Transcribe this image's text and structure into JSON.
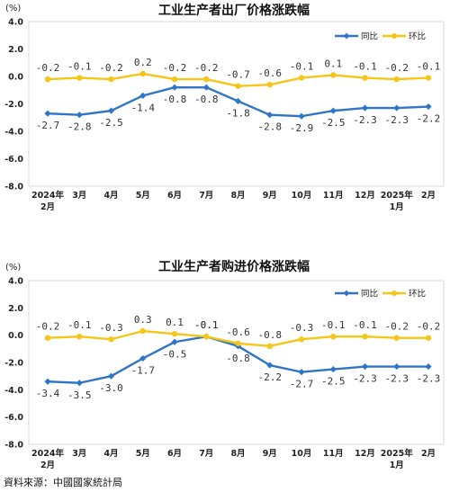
{
  "chart_data": [
    {
      "type": "line",
      "title": "工业生产者出厂价格涨跌幅",
      "yunit": "(%)",
      "ylim": [
        -8.0,
        4.0
      ],
      "yticks": [
        "4.0",
        "2.0",
        "0.0",
        "-2.0",
        "-4.0",
        "-6.0",
        "-8.0"
      ],
      "categories": [
        "2024年\n2月",
        "3月",
        "4月",
        "5月",
        "6月",
        "7月",
        "8月",
        "9月",
        "10月",
        "11月",
        "12月",
        "2025年\n1月",
        "2月"
      ],
      "legend_position": "top-right",
      "series": [
        {
          "name": "同比",
          "color": "#2F75C7",
          "marker": "diamond",
          "values": [
            -2.7,
            -2.8,
            -2.5,
            -1.4,
            -0.8,
            -0.8,
            -1.8,
            -2.8,
            -2.9,
            -2.5,
            -2.3,
            -2.3,
            -2.2
          ],
          "labels": [
            "-2.7",
            "-2.8",
            "-2.5",
            "-1.4",
            "-0.8",
            "-0.8",
            "-1.8",
            "-2.8",
            "-2.9",
            "-2.5",
            "-2.3",
            "-2.3",
            "-2.2"
          ]
        },
        {
          "name": "环比",
          "color": "#F5C518",
          "marker": "circle",
          "values": [
            -0.2,
            -0.1,
            -0.2,
            0.2,
            -0.2,
            -0.2,
            -0.7,
            -0.6,
            -0.1,
            0.1,
            -0.1,
            -0.2,
            -0.1
          ],
          "labels": [
            "-0.2",
            "-0.1",
            "-0.2",
            "0.2",
            "-0.2",
            "-0.2",
            "-0.7",
            "-0.6",
            "-0.1",
            "0.1",
            "-0.1",
            "-0.2",
            "-0.1"
          ]
        }
      ]
    },
    {
      "type": "line",
      "title": "工业生产者购进价格涨跌幅",
      "yunit": "(%)",
      "ylim": [
        -8.0,
        4.0
      ],
      "yticks": [
        "4.0",
        "2.0",
        "0.0",
        "-2.0",
        "-4.0",
        "-6.0",
        "-8.0"
      ],
      "categories": [
        "2024年\n2月",
        "3月",
        "4月",
        "5月",
        "6月",
        "7月",
        "8月",
        "9月",
        "10月",
        "11月",
        "12月",
        "2025年\n1月",
        "2月"
      ],
      "legend_position": "top-right",
      "series": [
        {
          "name": "同比",
          "color": "#2F75C7",
          "marker": "diamond",
          "values": [
            -3.4,
            -3.5,
            -3.0,
            -1.7,
            -0.5,
            -0.1,
            -0.8,
            -2.2,
            -2.7,
            -2.5,
            -2.3,
            -2.3,
            -2.3
          ],
          "labels": [
            "-3.4",
            "-3.5",
            "-3.0",
            "-1.7",
            "-0.5",
            "-0.1",
            "-0.8",
            "-2.2",
            "-2.7",
            "-2.5",
            "-2.3",
            "-2.3",
            "-2.3"
          ]
        },
        {
          "name": "环比",
          "color": "#F5C518",
          "marker": "circle",
          "values": [
            -0.2,
            -0.1,
            -0.3,
            0.3,
            0.1,
            -0.1,
            -0.6,
            -0.8,
            -0.3,
            -0.1,
            -0.1,
            -0.2,
            -0.2
          ],
          "labels": [
            "-0.2",
            "-0.1",
            "-0.3",
            "0.3",
            "0.1",
            "-0.1",
            "-0.6",
            "-0.8",
            "-0.3",
            "-0.1",
            "-0.1",
            "-0.2",
            "-0.2"
          ]
        }
      ]
    }
  ],
  "source": "資料來源：中國國家統計局"
}
